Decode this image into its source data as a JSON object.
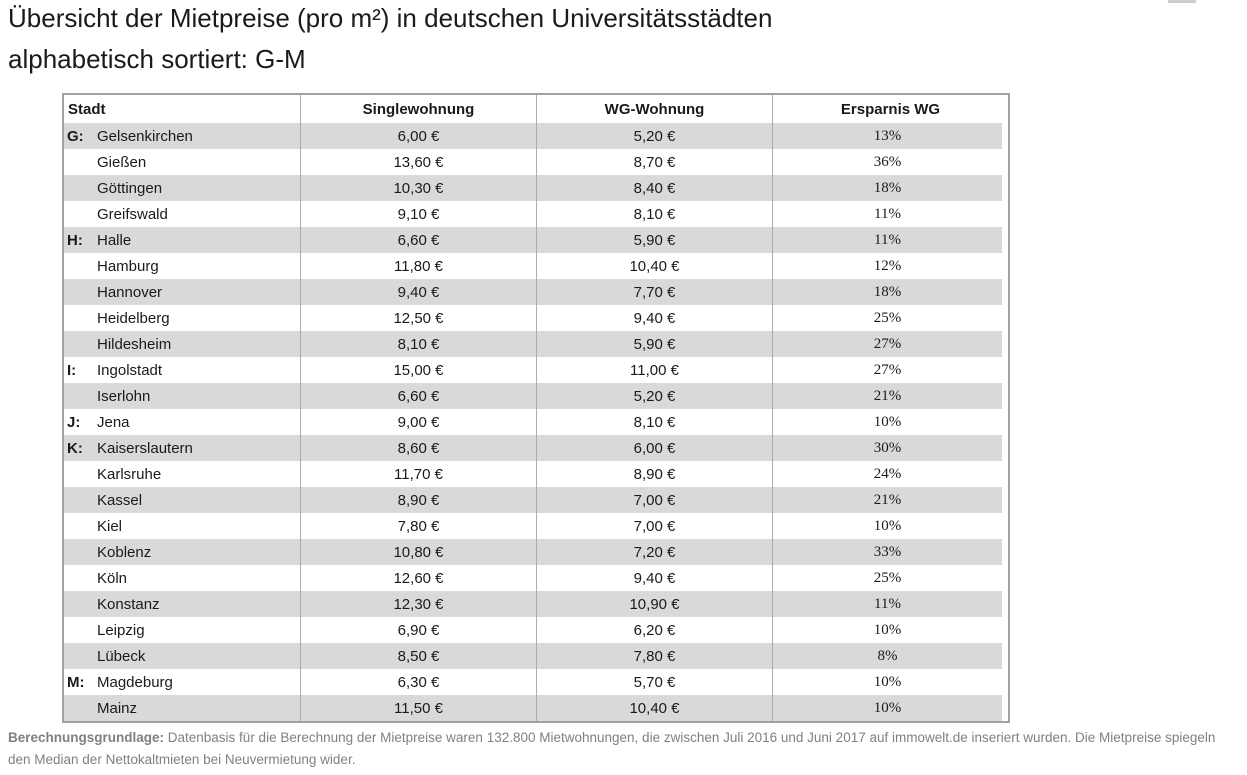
{
  "title": {
    "line1": "Übersicht der Mietpreise (pro m²) in deutschen Universitätsstädten",
    "line2": "alphabetisch sortiert: G-M"
  },
  "table": {
    "headers": [
      "Stadt",
      "Singlewohnung",
      "WG-Wohnung",
      "Ersparnis WG"
    ],
    "rows": [
      {
        "prefix": "G:",
        "city": "Gelsenkirchen",
        "single": "6,00 €",
        "wg": "5,20 €",
        "savings": "13%"
      },
      {
        "prefix": "",
        "city": "Gießen",
        "single": "13,60 €",
        "wg": "8,70 €",
        "savings": "36%"
      },
      {
        "prefix": "",
        "city": "Göttingen",
        "single": "10,30 €",
        "wg": "8,40 €",
        "savings": "18%"
      },
      {
        "prefix": "",
        "city": "Greifswald",
        "single": "9,10 €",
        "wg": "8,10 €",
        "savings": "11%"
      },
      {
        "prefix": "H:",
        "city": "Halle",
        "single": "6,60 €",
        "wg": "5,90 €",
        "savings": "11%"
      },
      {
        "prefix": "",
        "city": "Hamburg",
        "single": "11,80 €",
        "wg": "10,40 €",
        "savings": "12%"
      },
      {
        "prefix": "",
        "city": "Hannover",
        "single": "9,40 €",
        "wg": "7,70 €",
        "savings": "18%"
      },
      {
        "prefix": "",
        "city": "Heidelberg",
        "single": "12,50 €",
        "wg": "9,40 €",
        "savings": "25%"
      },
      {
        "prefix": "",
        "city": "Hildesheim",
        "single": "8,10 €",
        "wg": "5,90 €",
        "savings": "27%"
      },
      {
        "prefix": "I:",
        "city": "Ingolstadt",
        "single": "15,00 €",
        "wg": "11,00 €",
        "savings": "27%"
      },
      {
        "prefix": "",
        "city": "Iserlohn",
        "single": "6,60 €",
        "wg": "5,20 €",
        "savings": "21%"
      },
      {
        "prefix": "J:",
        "city": "Jena",
        "single": "9,00 €",
        "wg": "8,10 €",
        "savings": "10%"
      },
      {
        "prefix": "K:",
        "city": "Kaiserslautern",
        "single": "8,60 €",
        "wg": "6,00 €",
        "savings": "30%"
      },
      {
        "prefix": "",
        "city": "Karlsruhe",
        "single": "11,70 €",
        "wg": "8,90 €",
        "savings": "24%"
      },
      {
        "prefix": "",
        "city": "Kassel",
        "single": "8,90 €",
        "wg": "7,00 €",
        "savings": "21%"
      },
      {
        "prefix": "",
        "city": "Kiel",
        "single": "7,80 €",
        "wg": "7,00 €",
        "savings": "10%"
      },
      {
        "prefix": "",
        "city": "Koblenz",
        "single": "10,80 €",
        "wg": "7,20 €",
        "savings": "33%"
      },
      {
        "prefix": "",
        "city": "Köln",
        "single": "12,60 €",
        "wg": "9,40 €",
        "savings": "25%"
      },
      {
        "prefix": "",
        "city": "Konstanz",
        "single": "12,30 €",
        "wg": "10,90 €",
        "savings": "11%"
      },
      {
        "prefix": "",
        "city": "Leipzig",
        "single": "6,90 €",
        "wg": "6,20 €",
        "savings": "10%"
      },
      {
        "prefix": "",
        "city": "Lübeck",
        "single": "8,50 €",
        "wg": "7,80 €",
        "savings": "8%"
      },
      {
        "prefix": "M:",
        "city": "Magdeburg",
        "single": "6,30 €",
        "wg": "5,70 €",
        "savings": "10%"
      },
      {
        "prefix": "",
        "city": "Mainz",
        "single": "11,50 €",
        "wg": "10,40 €",
        "savings": "10%"
      }
    ]
  },
  "footer": {
    "label": "Berechnungsgrundlage:",
    "text": " Datenbasis für die Berechnung der Mietpreise waren 132.800 Mietwohnungen, die zwischen Juli 2016 und Juni 2017 auf immowelt.de inseriert wurden. Die Mietpreise spiegeln den Median der Nettokaltmieten bei Neuvermietung wider."
  },
  "colors": {
    "row_stripe": "#d9d9d9",
    "table_border": "#a1a1a1",
    "column_line": "#adadad",
    "footer_text": "#808080",
    "title_text": "#1a1a1a"
  },
  "chart_data": {
    "type": "table",
    "title": "Übersicht der Mietpreise (pro m²) in deutschen Universitätsstädten",
    "subtitle": "alphabetisch sortiert: G-M",
    "columns": [
      "Stadt",
      "Singlewohnung",
      "WG-Wohnung",
      "Ersparnis WG"
    ],
    "unit_note": "Preise in € pro m², Ersparnis in %",
    "rows": [
      [
        "Gelsenkirchen",
        6.0,
        5.2,
        13
      ],
      [
        "Gießen",
        13.6,
        8.7,
        36
      ],
      [
        "Göttingen",
        10.3,
        8.4,
        18
      ],
      [
        "Greifswald",
        9.1,
        8.1,
        11
      ],
      [
        "Halle",
        6.6,
        5.9,
        11
      ],
      [
        "Hamburg",
        11.8,
        10.4,
        12
      ],
      [
        "Hannover",
        9.4,
        7.7,
        18
      ],
      [
        "Heidelberg",
        12.5,
        9.4,
        25
      ],
      [
        "Hildesheim",
        8.1,
        5.9,
        27
      ],
      [
        "Ingolstadt",
        15.0,
        11.0,
        27
      ],
      [
        "Iserlohn",
        6.6,
        5.2,
        21
      ],
      [
        "Jena",
        9.0,
        8.1,
        10
      ],
      [
        "Kaiserslautern",
        8.6,
        6.0,
        30
      ],
      [
        "Karlsruhe",
        11.7,
        8.9,
        24
      ],
      [
        "Kassel",
        8.9,
        7.0,
        21
      ],
      [
        "Kiel",
        7.8,
        7.0,
        10
      ],
      [
        "Koblenz",
        10.8,
        7.2,
        33
      ],
      [
        "Köln",
        12.6,
        9.4,
        25
      ],
      [
        "Konstanz",
        12.3,
        10.9,
        11
      ],
      [
        "Leipzig",
        6.9,
        6.2,
        10
      ],
      [
        "Lübeck",
        8.5,
        7.8,
        8
      ],
      [
        "Magdeburg",
        6.3,
        5.7,
        10
      ],
      [
        "Mainz",
        11.5,
        10.4,
        10
      ]
    ],
    "letter_groups": {
      "G:": "Gelsenkirchen",
      "H:": "Halle",
      "I:": "Ingolstadt",
      "J:": "Jena",
      "K:": "Kaiserslautern",
      "M:": "Magdeburg"
    }
  }
}
